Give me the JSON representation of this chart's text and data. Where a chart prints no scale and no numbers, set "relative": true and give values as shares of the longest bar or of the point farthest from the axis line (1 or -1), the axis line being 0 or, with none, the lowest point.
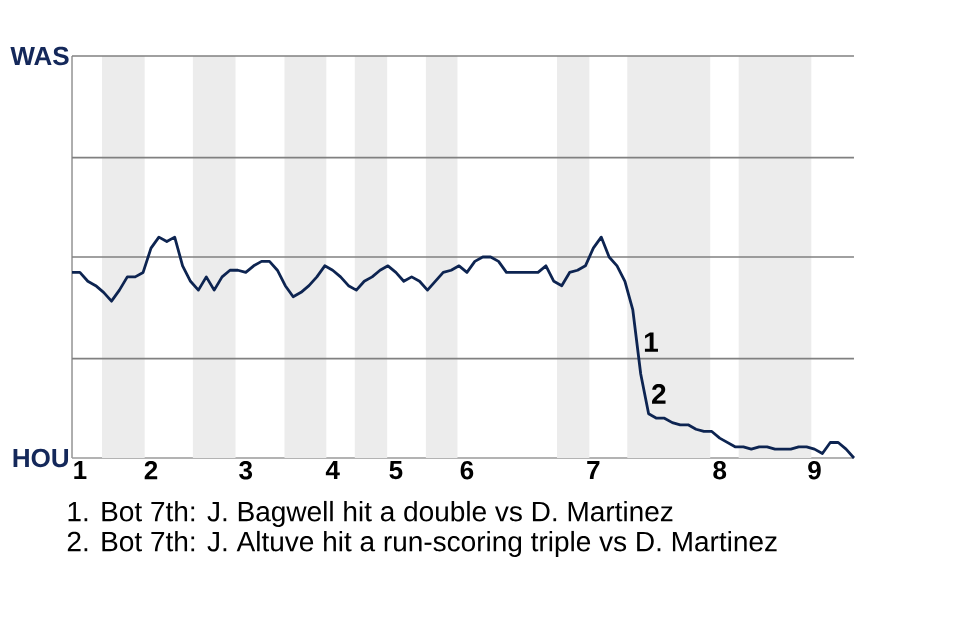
{
  "chart_data": {
    "type": "line",
    "relative": true,
    "categories": [
      null,
      "1",
      null,
      null,
      null,
      null,
      null,
      null,
      null,
      null,
      "2",
      null,
      null,
      null,
      null,
      null,
      null,
      null,
      null,
      null,
      null,
      null,
      "3",
      null,
      null,
      null,
      null,
      null,
      null,
      null,
      null,
      null,
      null,
      "4",
      null,
      null,
      null,
      null,
      null,
      null,
      null,
      "5",
      null,
      null,
      null,
      null,
      null,
      null,
      null,
      null,
      "6",
      null,
      null,
      null,
      null,
      null,
      null,
      null,
      null,
      null,
      null,
      null,
      null,
      null,
      null,
      null,
      "7",
      null,
      null,
      null,
      null,
      null,
      null,
      null,
      null,
      null,
      null,
      null,
      null,
      null,
      null,
      null,
      "8",
      null,
      null,
      null,
      null,
      null,
      null,
      null,
      null,
      null,
      null,
      null,
      "9",
      null,
      null,
      null,
      null,
      null
    ],
    "ref_lines": [
      {
        "axis": "y",
        "value": 0.45,
        "color": "#808080"
      },
      {
        "axis": "y",
        "value": 0.91,
        "color": "#808080"
      },
      {
        "axis": "y",
        "value": 1.36,
        "color": "#808080"
      },
      {
        "axis": "y",
        "value": 1.82,
        "color": "#808080"
      }
    ],
    "series": [
      {
        "color": "#0d2451",
        "values": [
          0.84,
          0.84,
          0.8,
          0.78,
          0.75,
          0.71,
          0.76,
          0.82,
          0.82,
          0.84,
          0.95,
          1,
          0.98,
          1,
          0.87,
          0.8,
          0.76,
          0.82,
          0.76,
          0.82,
          0.85,
          0.85,
          0.84,
          0.87,
          0.89,
          0.89,
          0.85,
          0.78,
          0.73,
          0.75,
          0.78,
          0.82,
          0.87,
          0.85,
          0.82,
          0.78,
          0.76,
          0.8,
          0.82,
          0.85,
          0.87,
          0.84,
          0.8,
          0.82,
          0.8,
          0.76,
          0.8,
          0.84,
          0.85,
          0.87,
          0.84,
          0.89,
          0.91,
          0.91,
          0.89,
          0.84,
          0.84,
          0.84,
          0.84,
          0.84,
          0.87,
          0.8,
          0.78,
          0.84,
          0.85,
          0.87,
          0.95,
          1,
          0.91,
          0.87,
          0.8,
          0.67,
          0.38,
          0.2,
          0.18,
          0.18,
          0.16,
          0.15,
          0.15,
          0.13,
          0.12,
          0.12,
          0.09,
          0.07,
          0.05,
          0.05,
          0.04,
          0.05,
          0.05,
          0.04,
          0.04,
          0.04,
          0.05,
          0.05,
          0.04,
          0.02,
          0.07,
          0.07,
          0.04,
          0
        ]
      }
    ],
    "annotations": [
      "WAS",
      "HOU",
      "1",
      "2",
      "1. Bot 7th: J. Bagwell hit a double vs D. Martinez",
      "2. Bot 7th: J. Altuve hit a run-scoring triple vs D. Martinez"
    ]
  }
}
